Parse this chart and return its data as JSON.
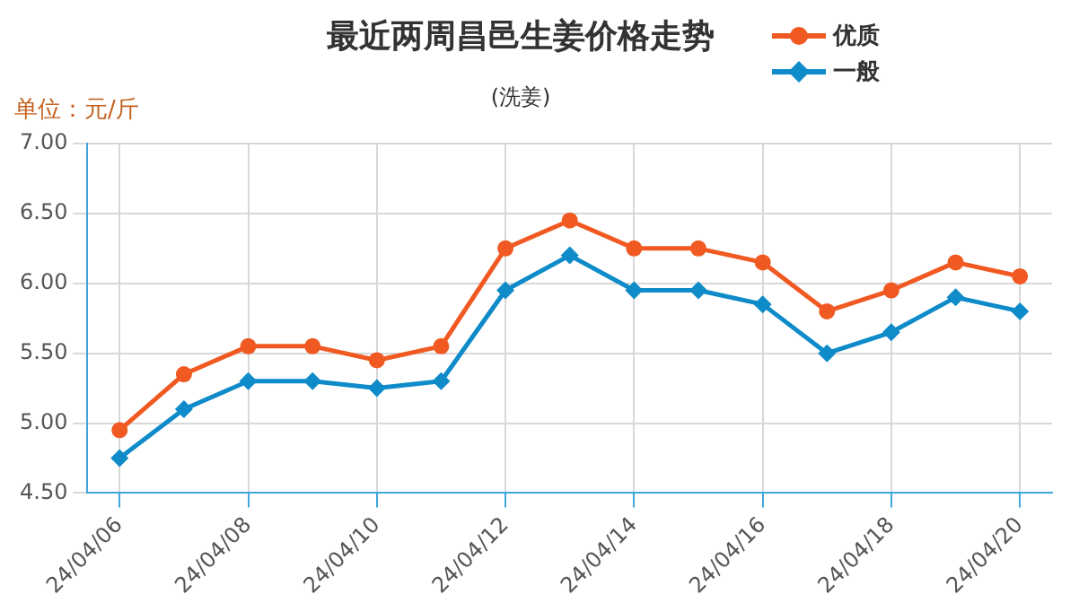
{
  "chart_data": {
    "type": "line",
    "title": "最近两周昌邑生姜价格走势",
    "subtitle": "(洗姜)",
    "ylabel": "单位：元/斤",
    "categories": [
      "24/04/06",
      null,
      "24/04/08",
      null,
      "24/04/10",
      null,
      "24/04/12",
      null,
      "24/04/14",
      null,
      "24/04/16",
      null,
      "24/04/18",
      null,
      "24/04/20"
    ],
    "series": [
      {
        "name": "优质",
        "color": "#f05a22",
        "marker": "circle",
        "values": [
          4.95,
          5.35,
          5.55,
          5.55,
          5.45,
          5.55,
          6.25,
          6.45,
          6.25,
          6.25,
          6.15,
          5.8,
          5.95,
          6.15,
          6.05
        ]
      },
      {
        "name": "一般",
        "color": "#0e8bc8",
        "marker": "diamond",
        "values": [
          4.75,
          5.1,
          5.3,
          5.3,
          5.25,
          5.3,
          5.95,
          6.2,
          5.95,
          5.95,
          5.85,
          5.5,
          5.65,
          5.9,
          5.8
        ]
      }
    ],
    "ylim": [
      4.5,
      7
    ],
    "yticks": [
      {
        "value": 4.5,
        "label": "4.50"
      },
      {
        "value": 5,
        "label": "5.00"
      },
      {
        "value": 5.5,
        "label": "5.50"
      },
      {
        "value": 6,
        "label": "6.00"
      },
      {
        "value": 6.5,
        "label": "6.50"
      },
      {
        "value": 7,
        "label": "7.00"
      }
    ],
    "grid": true,
    "legend": "top right",
    "line_style": "solid"
  }
}
